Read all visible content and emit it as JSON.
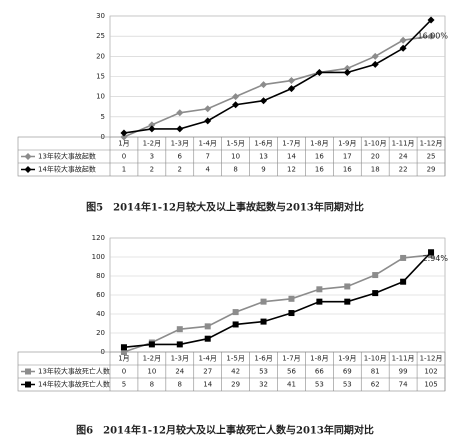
{
  "chart_data": [
    {
      "type": "line",
      "annotation": "16.00%",
      "categories": [
        "1月",
        "1-2月",
        "1-3月",
        "1-4月",
        "1-5月",
        "1-6月",
        "1-7月",
        "1-8月",
        "1-9月",
        "1-10月",
        "1-11月",
        "1-12月"
      ],
      "series": [
        {
          "name": "13年较大事故起数",
          "color": "#8c8c8c",
          "marker": "diamond",
          "values": [
            0,
            3,
            6,
            7,
            10,
            13,
            14,
            16,
            17,
            20,
            24,
            25
          ]
        },
        {
          "name": "14年较大事故起数",
          "color": "#000000",
          "marker": "diamond",
          "values": [
            1,
            2,
            2,
            4,
            8,
            9,
            12,
            16,
            16,
            18,
            22,
            29
          ]
        }
      ],
      "ylim": [
        0,
        30
      ],
      "yticks": [
        0,
        5,
        10,
        15,
        20,
        25,
        30
      ],
      "grid": true,
      "caption": "图5　2014年1-12月较大及以上事故起数与2013年同期对比"
    },
    {
      "type": "line",
      "annotation": "2.94%",
      "categories": [
        "1月",
        "1-2月",
        "1-3月",
        "1-4月",
        "1-5月",
        "1-6月",
        "1-7月",
        "1-8月",
        "1-9月",
        "1-10月",
        "1-11月",
        "1-12月"
      ],
      "series": [
        {
          "name": "13年较大事故死亡人数",
          "color": "#8c8c8c",
          "marker": "square",
          "values": [
            0,
            10,
            24,
            27,
            42,
            53,
            56,
            66,
            69,
            81,
            99,
            102
          ]
        },
        {
          "name": "14年较大事故死亡人数",
          "color": "#000000",
          "marker": "square",
          "values": [
            5,
            8,
            8,
            14,
            29,
            32,
            41,
            53,
            53,
            62,
            74,
            105
          ]
        }
      ],
      "ylim": [
        0,
        120
      ],
      "yticks": [
        0,
        20,
        40,
        60,
        80,
        100,
        120
      ],
      "grid": true,
      "caption": "图6　2014年1-12月较大及以上事故死亡人数与2013年同期对比"
    }
  ]
}
